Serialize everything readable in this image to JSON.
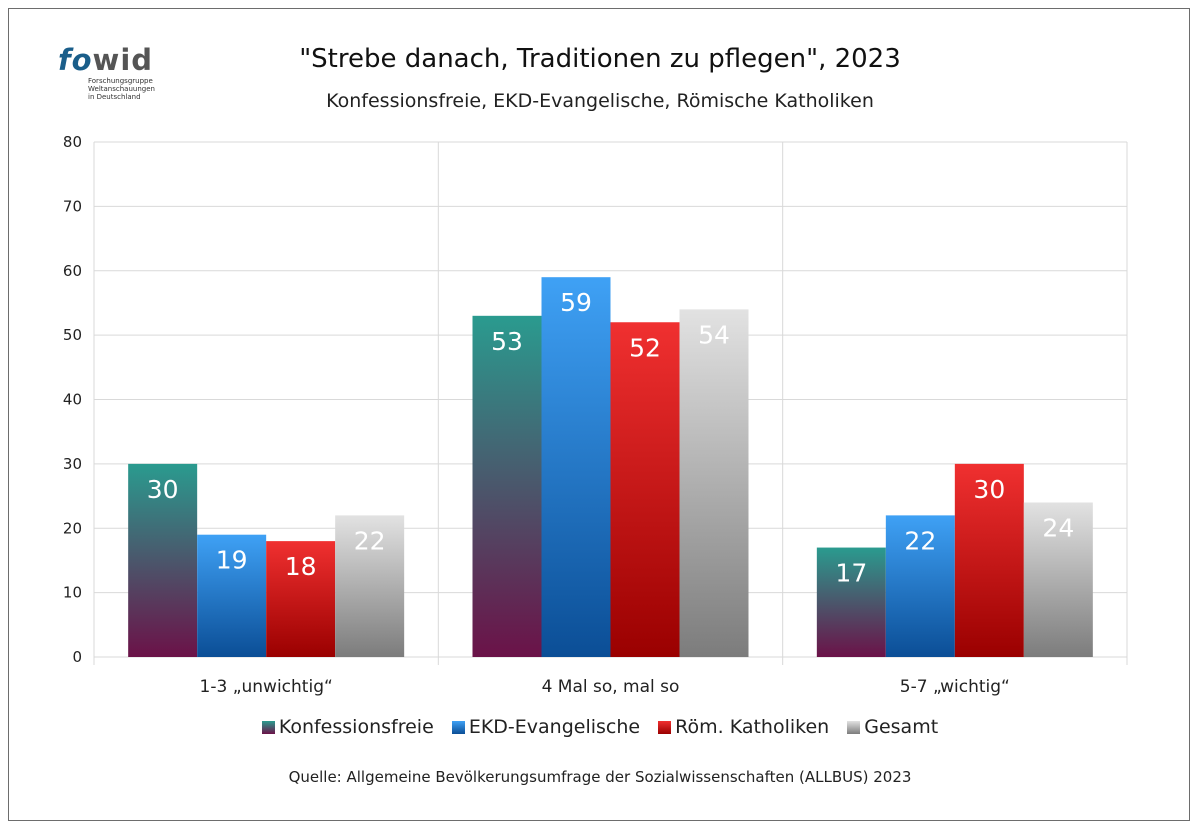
{
  "logo": {
    "word_part1": "fo",
    "word_part2": "wid",
    "lines": [
      "Forschungsgruppe",
      "Weltanschauungen",
      "in Deutschland"
    ]
  },
  "colors": {
    "konfessionsfreie_top": "#2a9b8f",
    "konfessionsfreie_bottom": "#6b1248",
    "ekd_top": "#3fa1f5",
    "ekd_bottom": "#0b4e96",
    "katholiken_top": "#f03030",
    "katholiken_bottom": "#9a0000",
    "gesamt_top": "#e2e2e2",
    "gesamt_bottom": "#7c7c7c",
    "grid": "#d9d9d9"
  },
  "chart_data": {
    "type": "bar",
    "title": "\"Strebe danach, Traditionen zu pflegen\", 2023",
    "subtitle": "Konfessionsfreie, EKD-Evangelische, Römische Katholiken",
    "categories": [
      "1-3 „unwichtig“",
      "4  Mal so, mal so",
      "5-7 „wichtig“"
    ],
    "series": [
      {
        "name": "Konfessionsfreie",
        "values": [
          30,
          53,
          17
        ]
      },
      {
        "name": "EKD-Evangelische",
        "values": [
          19,
          59,
          22
        ]
      },
      {
        "name": "Röm. Katholiken",
        "values": [
          18,
          52,
          30
        ]
      },
      {
        "name": "Gesamt",
        "values": [
          22,
          54,
          24
        ]
      }
    ],
    "ylim": [
      0,
      80
    ],
    "yticks": [
      "0",
      "10",
      "20",
      "30",
      "40",
      "50",
      "60",
      "70",
      "80"
    ],
    "xlabel": "",
    "ylabel": "",
    "grid": true,
    "legend_position": "bottom",
    "data_labels": true
  },
  "source": "Quelle: Allgemeine Bevölkerungsumfrage der Sozialwissenschaften (ALLBUS) 2023"
}
